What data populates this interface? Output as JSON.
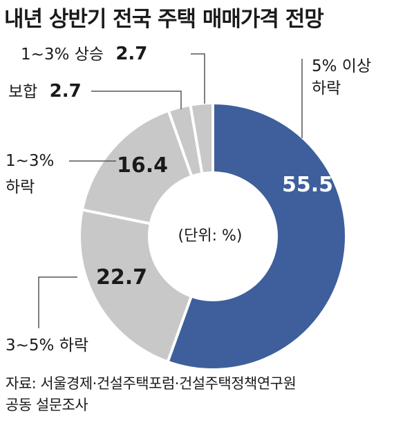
{
  "title": "내년 상반기 전국 주택 매매가격 전망",
  "chart_data": {
    "type": "pie",
    "title": "내년 상반기 전국 주택 매매가격 전망",
    "unit_label": "(단위: %)",
    "slices": [
      {
        "label": "5% 이상 하락",
        "value": 55.5,
        "color": "#3e5f9c"
      },
      {
        "label": "3~5% 하락",
        "value": 22.7,
        "color": "#c8c8c8"
      },
      {
        "label": "1~3% 하락",
        "value": 16.4,
        "color": "#c8c8c8"
      },
      {
        "label": "보합",
        "value": 2.7,
        "color": "#c8c8c8"
      },
      {
        "label": "1~3% 상승",
        "value": 2.7,
        "color": "#c8c8c8"
      }
    ]
  },
  "source": {
    "line1": "자료: 서울경제·건설주택포럼·건설주택정책연구원",
    "line2": "공동 설문조사"
  }
}
